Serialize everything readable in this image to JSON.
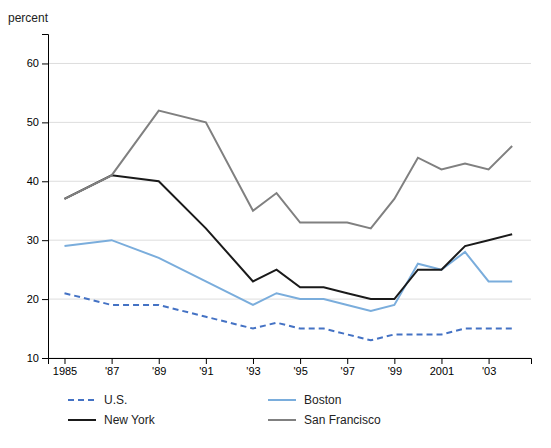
{
  "chart_data": {
    "type": "line",
    "ylabel": "percent",
    "x": [
      1985,
      1987,
      1989,
      1991,
      1993,
      1994,
      1995,
      1996,
      1997,
      1998,
      1999,
      2000,
      2001,
      2002,
      2003,
      2004
    ],
    "series": [
      {
        "name": "U.S.",
        "color": "#4472c4",
        "line_style": "dashed",
        "values": [
          21,
          19,
          19,
          17,
          15,
          16,
          15,
          15,
          14,
          13,
          14,
          14,
          14,
          15,
          15,
          15
        ]
      },
      {
        "name": "Boston",
        "color": "#7aaddc",
        "line_style": "solid",
        "values": [
          29,
          30,
          27,
          23,
          19,
          21,
          20,
          20,
          19,
          18,
          19,
          26,
          25,
          28,
          23,
          23
        ]
      },
      {
        "name": "New York",
        "color": "#1a1a1a",
        "line_style": "solid",
        "values": [
          37,
          41,
          40,
          32,
          23,
          25,
          22,
          22,
          21,
          20,
          20,
          25,
          25,
          29,
          30,
          31
        ]
      },
      {
        "name": "San Francisco",
        "color": "#808080",
        "line_style": "solid",
        "values": [
          37,
          41,
          52,
          50,
          35,
          38,
          33,
          33,
          33,
          32,
          37,
          44,
          42,
          43,
          42,
          46
        ]
      }
    ],
    "xlim": [
      1984.3,
      2004.8
    ],
    "xticks": [
      1985,
      {
        "value": 1987,
        "label": "'87"
      },
      {
        "value": 1989,
        "label": "'89"
      },
      {
        "value": 1991,
        "label": "'91"
      },
      {
        "value": 1993,
        "label": "'93"
      },
      {
        "value": 1995,
        "label": "'95"
      },
      {
        "value": 1997,
        "label": "'97"
      },
      {
        "value": 1999,
        "label": "'99"
      },
      2001,
      {
        "value": 2003,
        "label": "'03"
      }
    ],
    "ylim": [
      10,
      65
    ],
    "yticks": [
      10,
      20,
      30,
      40,
      50,
      60
    ],
    "grid": true,
    "legend": "bottom"
  }
}
